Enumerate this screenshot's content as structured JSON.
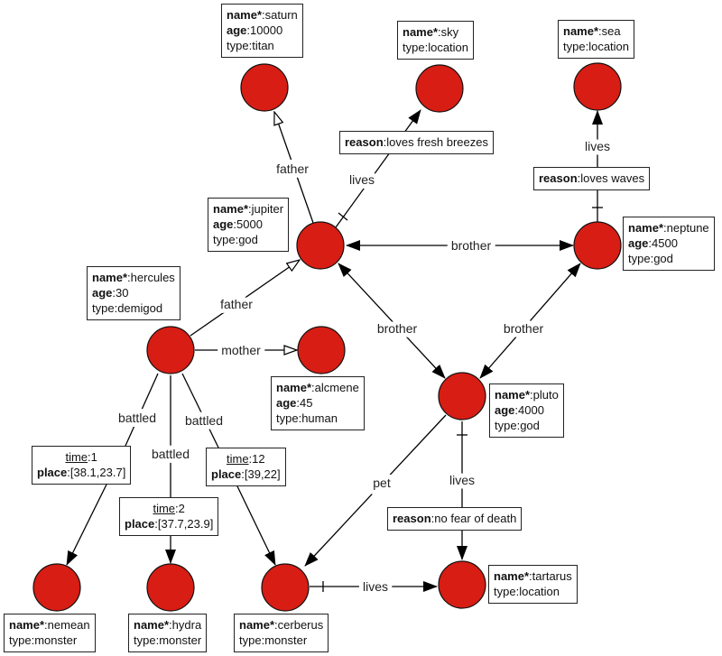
{
  "colors": {
    "node_fill": "#d71d14",
    "stroke": "#000000"
  },
  "nodes": {
    "saturn": {
      "props": [
        [
          "name*",
          "saturn"
        ],
        [
          "age",
          "10000"
        ],
        [
          "type",
          "titan"
        ]
      ]
    },
    "sky": {
      "props": [
        [
          "name*",
          "sky"
        ],
        [
          "type",
          "location"
        ]
      ]
    },
    "sea": {
      "props": [
        [
          "name*",
          "sea"
        ],
        [
          "type",
          "location"
        ]
      ]
    },
    "jupiter": {
      "props": [
        [
          "name*",
          "jupiter"
        ],
        [
          "age",
          "5000"
        ],
        [
          "type",
          "god"
        ]
      ]
    },
    "neptune": {
      "props": [
        [
          "name*",
          "neptune"
        ],
        [
          "age",
          "4500"
        ],
        [
          "type",
          "god"
        ]
      ]
    },
    "hercules": {
      "props": [
        [
          "name*",
          "hercules"
        ],
        [
          "age",
          "30"
        ],
        [
          "type",
          "demigod"
        ]
      ]
    },
    "alcmene": {
      "props": [
        [
          "name*",
          "alcmene"
        ],
        [
          "age",
          "45"
        ],
        [
          "type",
          "human"
        ]
      ]
    },
    "pluto": {
      "props": [
        [
          "name*",
          "pluto"
        ],
        [
          "age",
          "4000"
        ],
        [
          "type",
          "god"
        ]
      ]
    },
    "nemean": {
      "props": [
        [
          "name*",
          "nemean"
        ],
        [
          "type",
          "monster"
        ]
      ]
    },
    "hydra": {
      "props": [
        [
          "name*",
          "hydra"
        ],
        [
          "type",
          "monster"
        ]
      ]
    },
    "cerberus": {
      "props": [
        [
          "name*",
          "cerberus"
        ],
        [
          "type",
          "monster"
        ]
      ]
    },
    "tartarus": {
      "props": [
        [
          "name*",
          "tartarus"
        ],
        [
          "type",
          "location"
        ]
      ]
    }
  },
  "edges": [
    {
      "id": "jupiter-saturn",
      "label": "father",
      "from": "jupiter",
      "to": "saturn",
      "arrow": "hollow"
    },
    {
      "id": "jupiter-sky",
      "label": "lives",
      "from": "jupiter",
      "to": "sky",
      "arrow": "filled",
      "props": [
        [
          "reason",
          "loves fresh breezes"
        ]
      ]
    },
    {
      "id": "jupiter-neptune",
      "label": "brother",
      "from": "jupiter",
      "to": "neptune",
      "arrow": "both"
    },
    {
      "id": "neptune-sea",
      "label": "lives",
      "from": "neptune",
      "to": "sea",
      "arrow": "filled",
      "props": [
        [
          "reason",
          "loves waves"
        ]
      ]
    },
    {
      "id": "hercules-jupiter",
      "label": "father",
      "from": "hercules",
      "to": "jupiter",
      "arrow": "hollow"
    },
    {
      "id": "hercules-alcmene",
      "label": "mother",
      "from": "hercules",
      "to": "alcmene",
      "arrow": "hollow"
    },
    {
      "id": "jupiter-pluto",
      "label": "brother",
      "from": "jupiter",
      "to": "pluto",
      "arrow": "both"
    },
    {
      "id": "neptune-pluto",
      "label": "brother",
      "from": "neptune",
      "to": "pluto",
      "arrow": "both"
    },
    {
      "id": "hercules-nemean",
      "label": "battled",
      "from": "hercules",
      "to": "nemean",
      "arrow": "filled",
      "props": [
        [
          "time",
          "1"
        ],
        [
          "place",
          "[38.1,23.7]"
        ]
      ]
    },
    {
      "id": "hercules-hydra",
      "label": "battled",
      "from": "hercules",
      "to": "hydra",
      "arrow": "filled",
      "props": [
        [
          "time",
          "2"
        ],
        [
          "place",
          "[37.7,23.9]"
        ]
      ]
    },
    {
      "id": "hercules-cerberus",
      "label": "battled",
      "from": "hercules",
      "to": "cerberus",
      "arrow": "filled",
      "props": [
        [
          "time",
          "12"
        ],
        [
          "place",
          "[39,22]"
        ]
      ]
    },
    {
      "id": "pluto-cerberus",
      "label": "pet",
      "from": "pluto",
      "to": "cerberus",
      "arrow": "filled"
    },
    {
      "id": "pluto-tartarus",
      "label": "lives",
      "from": "pluto",
      "to": "tartarus",
      "arrow": "filled",
      "props": [
        [
          "reason",
          "no fear of death"
        ]
      ]
    },
    {
      "id": "cerberus-tartarus",
      "label": "lives",
      "from": "cerberus",
      "to": "tartarus",
      "arrow": "filled"
    }
  ]
}
